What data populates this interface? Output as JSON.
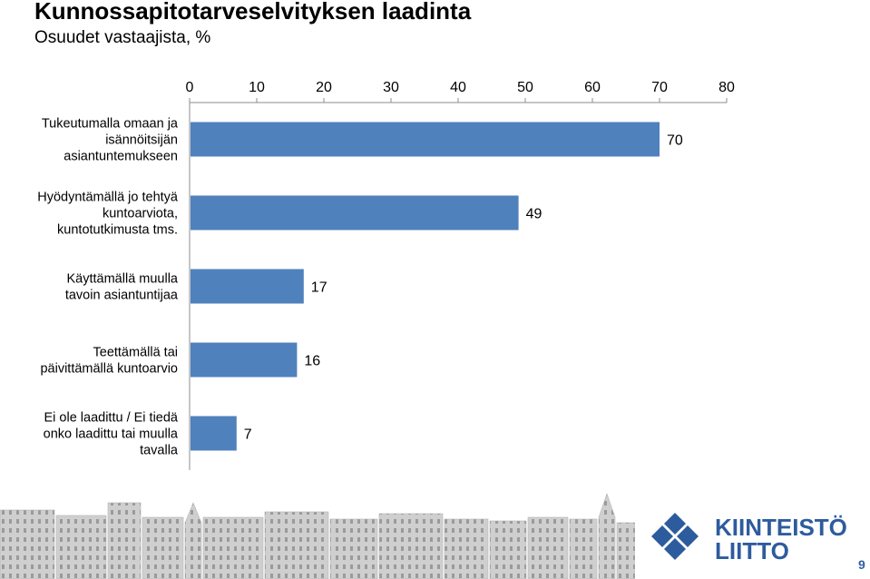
{
  "chart_data": {
    "type": "bar",
    "orientation": "horizontal",
    "title": "Kunnossapitotarveselvityksen laadinta",
    "subtitle": "Osuudet vastaajista, %",
    "categories": [
      [
        "Tukeutumalla omaan ja",
        "isännöitsijän",
        "asiantuntemukseen"
      ],
      [
        "Hyödyntämällä jo tehtyä",
        "kuntoarviota,",
        "kuntotutkimusta tms."
      ],
      [
        "Käyttämällä muulla",
        "tavoin asiantuntijaa"
      ],
      [
        "Teettämällä tai",
        "päivittämällä kuntoarvio"
      ],
      [
        "Ei ole laadittu / Ei tiedä",
        "onko laadittu tai muulla",
        "tavalla"
      ]
    ],
    "values": [
      70,
      49,
      17,
      16,
      7
    ],
    "data_labels": [
      "70",
      "49",
      "17",
      "16",
      "7"
    ],
    "xlim": [
      0,
      80
    ],
    "xticks": [
      "0",
      "10",
      "20",
      "30",
      "40",
      "50",
      "60",
      "70",
      "80"
    ],
    "xaxis_position": "top",
    "grid": false,
    "legend": "none",
    "bar_color": "#4f81bd"
  },
  "footer": {
    "logo_line1": "KIINTEISTÖ",
    "logo_line2": "LIITTO",
    "logo_color": "#2d5c9e",
    "page_number": "9"
  }
}
